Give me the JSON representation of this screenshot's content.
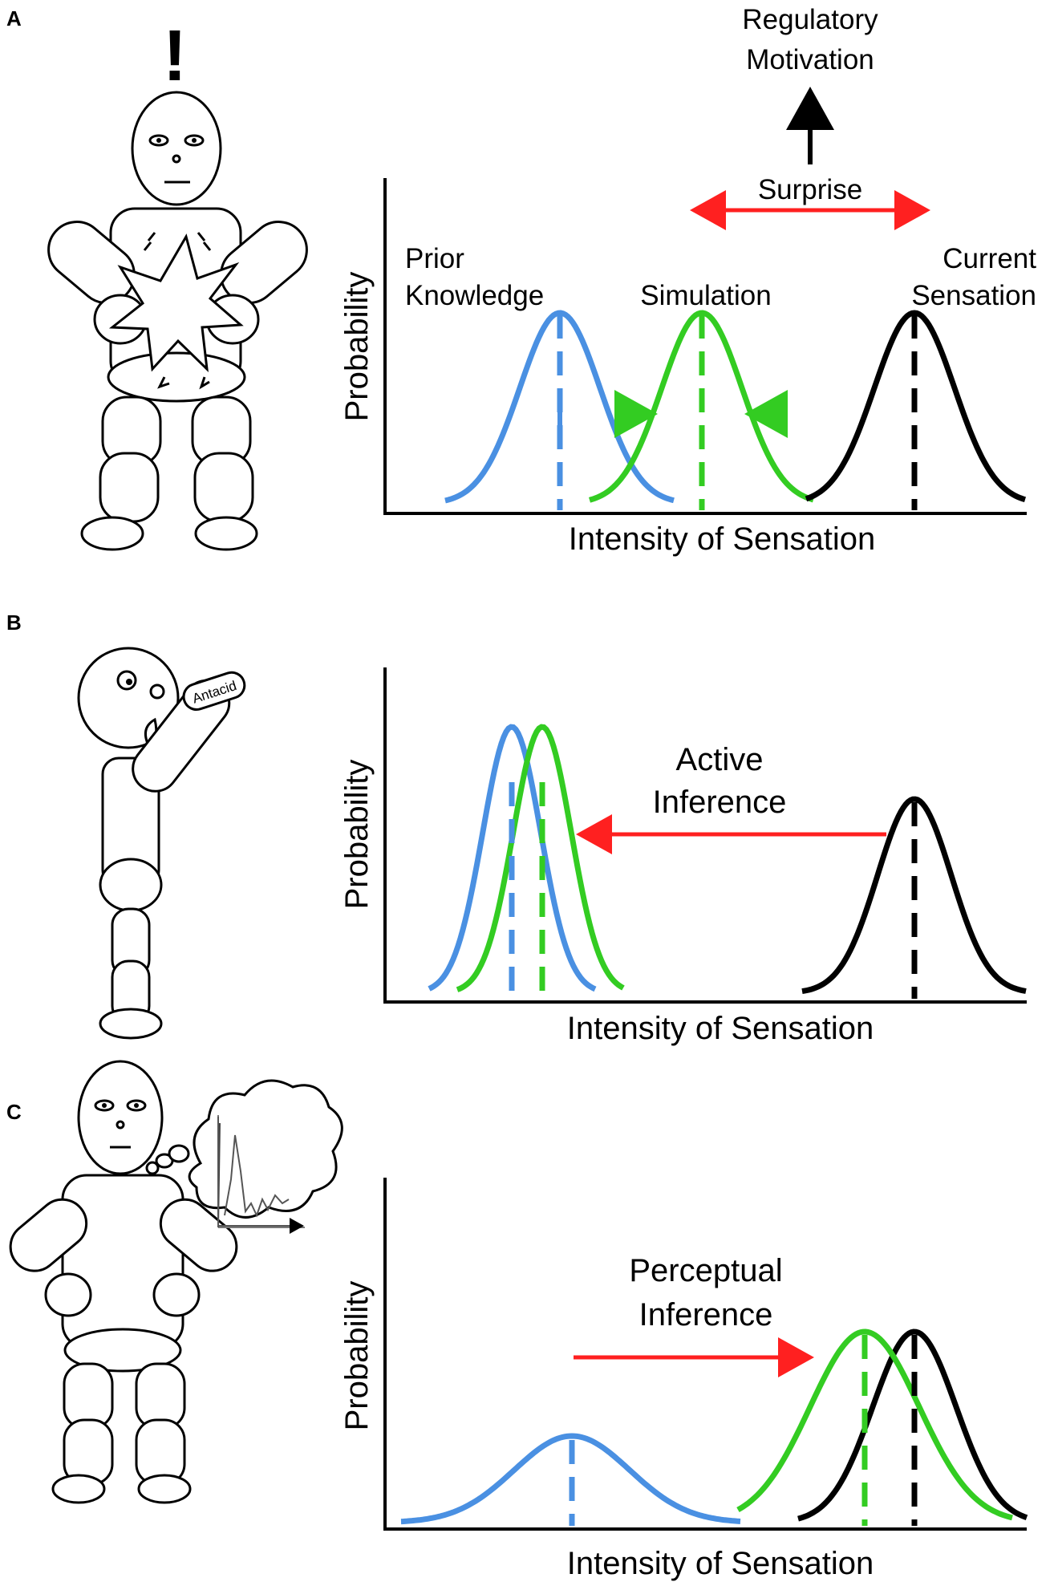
{
  "panels": [
    {
      "letter": "A",
      "annotations": {
        "regulatory": [
          "Regulatory",
          "Motivation"
        ],
        "surprise": "Surprise",
        "prior": [
          "Prior",
          "Knowledge"
        ],
        "simulation": "Simulation",
        "current": [
          "Current",
          "Sensation"
        ]
      },
      "exclamation": "!",
      "ylabel": "Probability",
      "xlabel": "Intensity of Sensation"
    },
    {
      "letter": "B",
      "annotations": {
        "inference": [
          "Active",
          "Inference"
        ]
      },
      "pill_label": "Antacid",
      "ylabel": "Probability",
      "xlabel": "Intensity of Sensation"
    },
    {
      "letter": "C",
      "annotations": {
        "inference": [
          "Perceptual",
          "Inference"
        ]
      },
      "ylabel": "Probability",
      "xlabel": "Intensity of Sensation"
    }
  ],
  "colors": {
    "prior": "#4a90e2",
    "simulation": "#33cc22",
    "current": "#000000",
    "arrow": "#ff2020"
  },
  "icons": [
    "exclamation-icon",
    "stomach-pain-star-icon",
    "antacid-pill-icon",
    "thought-cloud-icon"
  ]
}
